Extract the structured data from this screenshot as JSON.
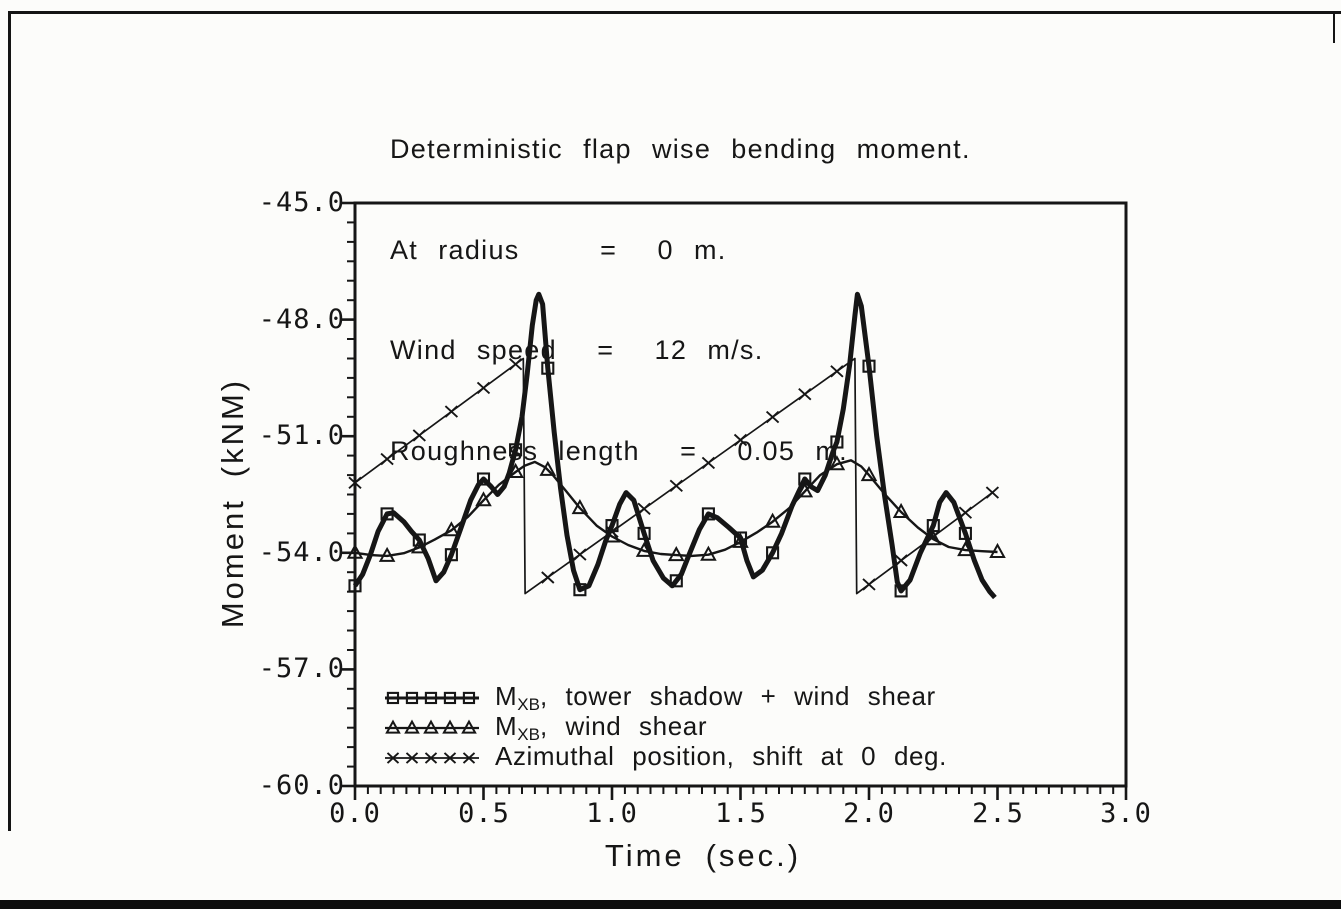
{
  "colors": {
    "ink": "#161616",
    "background": "#fcfcfa"
  },
  "title": {
    "lines": [
      "Deterministic flap wise bending moment.",
      "At radius    =  0 m.",
      "Wind speed  =  12 m/s.",
      "Roughness length  =  0.05 m."
    ]
  },
  "axes": {
    "x": {
      "label": "Time (sec.)",
      "tick_labels": [
        "0.0",
        "0.5",
        "1.0",
        "1.5",
        "2.0",
        "2.5",
        "3.0"
      ],
      "tick_values": [
        0,
        0.5,
        1,
        1.5,
        2,
        2.5,
        3
      ],
      "minor_step": 0.05,
      "range": [
        0,
        3
      ]
    },
    "y": {
      "label": "Moment (kNM)",
      "tick_labels": [
        "-45.0",
        "-48.0",
        "-51.0",
        "-54.0",
        "-57.0",
        "-60.0"
      ],
      "tick_values": [
        -45,
        -48,
        -51,
        -54,
        -57,
        -60
      ],
      "minor_step": 0.5,
      "range": [
        -60,
        -45
      ]
    }
  },
  "legend": {
    "items": [
      {
        "marker": "square",
        "label_prefix": "M",
        "label_sub": "XB",
        "label_rest": ", tower shadow + wind shear"
      },
      {
        "marker": "triangle",
        "label_prefix": "M",
        "label_sub": "XB",
        "label_rest": ", wind shear"
      },
      {
        "marker": "x",
        "label_prefix": "Azimuthal position, shift at 0 deg.",
        "label_sub": "",
        "label_rest": ""
      }
    ]
  },
  "chart_data": {
    "type": "line",
    "title": "Deterministic flap wise bending moment. At radius = 0 m. Wind speed = 12 m/s. Roughness length = 0.05 m.",
    "xlabel": "Time (sec.)",
    "ylabel": "Moment (kNM)",
    "xlim": [
      0,
      3
    ],
    "ylim": [
      -60,
      -45
    ],
    "x_major_tick": 0.5,
    "y_major_tick": 3.0,
    "grid": false,
    "legend_position": "lower-left-inside",
    "series": [
      {
        "name": "MXB, tower shadow + wind shear",
        "marker": "square",
        "marker_interval": 0.125,
        "marker_until": 2.375,
        "end_marker": false,
        "points": [
          [
            0.0,
            -54.85
          ],
          [
            0.03,
            -54.55
          ],
          [
            0.06,
            -54.05
          ],
          [
            0.09,
            -53.45
          ],
          [
            0.125,
            -53.0
          ],
          [
            0.15,
            -52.97
          ],
          [
            0.19,
            -53.2
          ],
          [
            0.22,
            -53.45
          ],
          [
            0.25,
            -53.67
          ],
          [
            0.285,
            -54.15
          ],
          [
            0.315,
            -54.72
          ],
          [
            0.345,
            -54.5
          ],
          [
            0.375,
            -54.05
          ],
          [
            0.41,
            -53.4
          ],
          [
            0.45,
            -52.65
          ],
          [
            0.48,
            -52.25
          ],
          [
            0.5,
            -52.1
          ],
          [
            0.53,
            -52.3
          ],
          [
            0.555,
            -52.5
          ],
          [
            0.58,
            -52.3
          ],
          [
            0.6,
            -51.95
          ],
          [
            0.625,
            -51.35
          ],
          [
            0.65,
            -50.5
          ],
          [
            0.67,
            -49.4
          ],
          [
            0.69,
            -48.15
          ],
          [
            0.705,
            -47.5
          ],
          [
            0.715,
            -47.35
          ],
          [
            0.73,
            -47.6
          ],
          [
            0.75,
            -49.25
          ],
          [
            0.775,
            -50.9
          ],
          [
            0.8,
            -52.35
          ],
          [
            0.825,
            -53.55
          ],
          [
            0.85,
            -54.45
          ],
          [
            0.875,
            -54.95
          ],
          [
            0.91,
            -54.85
          ],
          [
            0.945,
            -54.3
          ],
          [
            0.975,
            -53.7
          ],
          [
            1.0,
            -53.3
          ],
          [
            1.03,
            -52.75
          ],
          [
            1.055,
            -52.45
          ],
          [
            1.085,
            -52.65
          ],
          [
            1.125,
            -53.5
          ],
          [
            1.16,
            -54.2
          ],
          [
            1.2,
            -54.65
          ],
          [
            1.235,
            -54.85
          ],
          [
            1.27,
            -54.55
          ],
          [
            1.3,
            -54.05
          ],
          [
            1.34,
            -53.4
          ],
          [
            1.375,
            -53.0
          ],
          [
            1.41,
            -53.1
          ],
          [
            1.455,
            -53.35
          ],
          [
            1.5,
            -53.62
          ],
          [
            1.525,
            -54.2
          ],
          [
            1.55,
            -54.62
          ],
          [
            1.585,
            -54.45
          ],
          [
            1.625,
            -54.0
          ],
          [
            1.66,
            -53.5
          ],
          [
            1.7,
            -52.8
          ],
          [
            1.75,
            -52.1
          ],
          [
            1.775,
            -52.3
          ],
          [
            1.8,
            -52.4
          ],
          [
            1.83,
            -52.0
          ],
          [
            1.86,
            -51.4
          ],
          [
            1.875,
            -51.15
          ],
          [
            1.9,
            -50.3
          ],
          [
            1.925,
            -49.15
          ],
          [
            1.945,
            -47.9
          ],
          [
            1.955,
            -47.35
          ],
          [
            1.97,
            -47.65
          ],
          [
            2.0,
            -49.2
          ],
          [
            2.03,
            -51.0
          ],
          [
            2.06,
            -52.5
          ],
          [
            2.09,
            -53.8
          ],
          [
            2.11,
            -54.75
          ],
          [
            2.125,
            -54.98
          ],
          [
            2.16,
            -54.7
          ],
          [
            2.2,
            -54.0
          ],
          [
            2.25,
            -53.3
          ],
          [
            2.275,
            -52.7
          ],
          [
            2.3,
            -52.45
          ],
          [
            2.33,
            -52.7
          ],
          [
            2.375,
            -53.5
          ],
          [
            2.41,
            -54.2
          ],
          [
            2.44,
            -54.7
          ],
          [
            2.47,
            -55.0
          ],
          [
            2.49,
            -55.15
          ]
        ]
      },
      {
        "name": "MXB, wind shear",
        "marker": "triangle",
        "marker_interval": 0.125,
        "marker_until": 2.5,
        "end_marker": false,
        "points": [
          [
            0.0,
            -54.0
          ],
          [
            0.0625,
            -54.06
          ],
          [
            0.125,
            -54.08
          ],
          [
            0.19,
            -54.01
          ],
          [
            0.25,
            -53.86
          ],
          [
            0.31,
            -53.66
          ],
          [
            0.375,
            -53.42
          ],
          [
            0.44,
            -53.07
          ],
          [
            0.5,
            -52.65
          ],
          [
            0.56,
            -52.25
          ],
          [
            0.625,
            -51.92
          ],
          [
            0.66,
            -51.76
          ],
          [
            0.7,
            -51.66
          ],
          [
            0.74,
            -51.8
          ],
          [
            0.77,
            -52.0
          ],
          [
            0.82,
            -52.4
          ],
          [
            0.875,
            -52.85
          ],
          [
            0.94,
            -53.3
          ],
          [
            1.0,
            -53.58
          ],
          [
            1.0625,
            -53.8
          ],
          [
            1.125,
            -53.95
          ],
          [
            1.19,
            -54.03
          ],
          [
            1.25,
            -54.06
          ],
          [
            1.31,
            -54.08
          ],
          [
            1.375,
            -54.05
          ],
          [
            1.44,
            -53.92
          ],
          [
            1.5,
            -53.72
          ],
          [
            1.5625,
            -53.48
          ],
          [
            1.625,
            -53.2
          ],
          [
            1.69,
            -52.85
          ],
          [
            1.75,
            -52.42
          ],
          [
            1.81,
            -52.0
          ],
          [
            1.875,
            -51.72
          ],
          [
            1.93,
            -51.62
          ],
          [
            1.97,
            -51.78
          ],
          [
            2.0,
            -52.0
          ],
          [
            2.0625,
            -52.5
          ],
          [
            2.125,
            -52.95
          ],
          [
            2.19,
            -53.35
          ],
          [
            2.25,
            -53.65
          ],
          [
            2.31,
            -53.85
          ],
          [
            2.375,
            -53.93
          ],
          [
            2.44,
            -53.96
          ],
          [
            2.5,
            -53.98
          ]
        ]
      },
      {
        "name": "Azimuthal position, shift at 0 deg.",
        "marker": "x",
        "marker_interval": 0.125,
        "marker_until": 2.375,
        "end_marker": true,
        "points": [
          [
            0.0,
            -52.2
          ],
          [
            0.655,
            -49.0
          ],
          [
            0.662,
            -55.05
          ],
          [
            1.945,
            -49.0
          ],
          [
            1.952,
            -55.05
          ],
          [
            2.48,
            -52.45
          ]
        ]
      }
    ]
  }
}
